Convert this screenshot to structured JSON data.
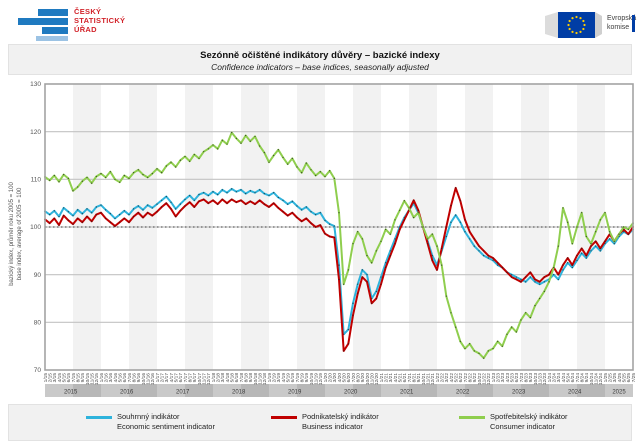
{
  "header": {
    "czso": {
      "line1": "ČESKÝ",
      "line2": "STATISTICKÝ",
      "line3": "ÚŘAD"
    },
    "ec": {
      "line1": "Evropská",
      "line2": "komise"
    }
  },
  "title_band": {
    "title_cs": "Sezónně očištěné indikátory důvěry – bazické indexy",
    "title_en": "Confidence indicators – base indices, seasonally adjusted"
  },
  "colors": {
    "esi": "#2eb3dc",
    "business": "#c00000",
    "consumer": "#8fce4e",
    "grid": "#c3c3c3",
    "plot_border": "#a3a3a3",
    "baseline_dotted": "#444444",
    "band_light": "#c9c9c9",
    "band_dark": "#b7b7b7",
    "czso_blue": "#1f7ac0",
    "czso_blue_light": "#9cc3e4",
    "czso_red": "#d2232a",
    "eu_blue": "#003da5",
    "eu_star": "#ffcc00"
  },
  "legend": {
    "entries": [
      {
        "name_cs": "Souhrnný indikátor",
        "name_en": "Economic sentiment indicator",
        "color": "#2eb3dc"
      },
      {
        "name_cs": "Podnikatelský indikátor",
        "name_en": "Business indicator",
        "color": "#c00000"
      },
      {
        "name_cs": "Spotřebitelský indikátor",
        "name_en": "Consumer indicator",
        "color": "#8fce4e"
      }
    ]
  },
  "chart_data": {
    "type": "line",
    "title": "Sezónně očištěné indikátory důvěry – bazické indexy",
    "subtitle": "Confidence indicators – base indices, seasonally adjusted",
    "ylabel_cs": "bazický index, průměr roku 2005 = 100",
    "ylabel_en": "base index, average of 2005 = 100",
    "xlabel": "",
    "ylim": [
      70,
      130
    ],
    "yticks": [
      70,
      80,
      90,
      100,
      110,
      120,
      130
    ],
    "baseline": 100,
    "grid": true,
    "legend_position": "bottom",
    "year_bands": [
      "2015",
      "2016",
      "2017",
      "2018",
      "2019",
      "2020",
      "2021",
      "2022",
      "2023",
      "2024",
      "2025"
    ],
    "x_tick_labels": [
      "1/15",
      "2/15",
      "3/15",
      "4/15",
      "5/15",
      "6/15",
      "7/15",
      "8/15",
      "9/15",
      "10/15",
      "11/15",
      "12/15",
      "1/16",
      "2/16",
      "3/16",
      "4/16",
      "5/16",
      "6/16",
      "7/16",
      "8/16",
      "9/16",
      "10/16",
      "11/16",
      "12/16",
      "1/17",
      "2/17",
      "3/17",
      "4/17",
      "5/17",
      "6/17",
      "7/17",
      "8/17",
      "9/17",
      "10/17",
      "11/17",
      "12/17",
      "1/18",
      "2/18",
      "3/18",
      "4/18",
      "5/18",
      "6/18",
      "7/18",
      "8/18",
      "9/18",
      "10/18",
      "11/18",
      "12/18",
      "1/19",
      "2/19",
      "3/19",
      "4/19",
      "5/19",
      "6/19",
      "7/19",
      "8/19",
      "9/19",
      "10/19",
      "11/19",
      "12/19",
      "1/20",
      "2/20",
      "3/20",
      "4/20",
      "5/20",
      "6/20",
      "7/20",
      "8/20",
      "9/20",
      "10/20",
      "11/20",
      "12/20",
      "1/21",
      "2/21",
      "3/21",
      "4/21",
      "5/21",
      "6/21",
      "7/21",
      "8/21",
      "9/21",
      "10/21",
      "11/21",
      "12/21",
      "1/22",
      "2/22",
      "3/22",
      "4/22",
      "5/22",
      "6/22",
      "7/22",
      "8/22",
      "9/22",
      "10/22",
      "11/22",
      "12/22",
      "1/23",
      "2/23",
      "3/23",
      "4/23",
      "5/23",
      "6/23",
      "7/23",
      "8/23",
      "9/23",
      "10/23",
      "11/23",
      "12/23",
      "1/24",
      "2/24",
      "3/24",
      "4/24",
      "5/24",
      "6/24",
      "7/24",
      "8/24",
      "9/24",
      "10/24",
      "11/24",
      "12/24",
      "1/25",
      "2/25",
      "3/25",
      "4/25",
      "5/25",
      "6/25",
      "7/25"
    ],
    "series": [
      {
        "name_cs": "Souhrnný indikátor",
        "name_en": "Economic sentiment indicator",
        "color": "#2eb3dc",
        "values": [
          103.3,
          102.6,
          103.4,
          102.2,
          104.0,
          103.2,
          102.4,
          103.6,
          102.8,
          103.8,
          103.0,
          104.2,
          104.6,
          103.6,
          102.8,
          101.8,
          102.6,
          103.4,
          102.6,
          103.8,
          104.4,
          103.6,
          104.6,
          104.0,
          104.8,
          105.6,
          106.4,
          105.2,
          103.8,
          104.8,
          105.8,
          106.6,
          105.6,
          106.8,
          107.2,
          106.6,
          107.4,
          106.8,
          107.8,
          107.2,
          108.0,
          107.4,
          107.8,
          107.0,
          107.6,
          107.2,
          107.8,
          107.0,
          106.6,
          107.2,
          106.2,
          105.6,
          104.8,
          105.4,
          104.4,
          103.6,
          104.2,
          103.2,
          102.6,
          103.0,
          101.4,
          100.6,
          100.2,
          92.0,
          77.5,
          78.5,
          84.0,
          88.0,
          91.0,
          90.0,
          85.0,
          86.5,
          89.5,
          92.5,
          95.0,
          97.5,
          100.0,
          102.0,
          103.5,
          105.0,
          103.0,
          100.0,
          97.0,
          94.0,
          92.0,
          95.0,
          98.0,
          101.0,
          102.5,
          101.0,
          99.0,
          97.5,
          96.0,
          95.0,
          94.0,
          93.5,
          93.0,
          92.0,
          91.5,
          90.5,
          90.0,
          89.5,
          89.0,
          88.5,
          89.5,
          88.5,
          88.0,
          88.5,
          89.0,
          90.0,
          89.0,
          91.0,
          92.5,
          91.5,
          93.0,
          94.5,
          93.5,
          95.0,
          96.0,
          95.0,
          96.5,
          97.5,
          96.5,
          98.0,
          99.0,
          98.5,
          99.5
        ]
      },
      {
        "name_cs": "Podnikatelský indikátor",
        "name_en": "Business indicator",
        "color": "#c00000",
        "values": [
          101.6,
          100.8,
          101.8,
          100.4,
          102.4,
          101.4,
          100.6,
          101.8,
          101.0,
          102.2,
          101.2,
          102.6,
          103.0,
          101.8,
          101.0,
          100.2,
          101.0,
          101.8,
          101.0,
          102.2,
          103.0,
          102.0,
          103.0,
          102.4,
          103.2,
          104.2,
          105.0,
          103.8,
          102.2,
          103.4,
          104.4,
          105.2,
          104.2,
          105.4,
          105.8,
          105.0,
          105.6,
          104.8,
          105.8,
          105.0,
          105.8,
          105.2,
          105.6,
          104.8,
          105.4,
          104.8,
          105.6,
          104.8,
          104.2,
          105.0,
          104.0,
          103.2,
          102.4,
          103.0,
          102.0,
          101.2,
          101.8,
          100.8,
          100.0,
          100.4,
          98.6,
          98.0,
          97.8,
          89.0,
          74.0,
          75.5,
          81.5,
          86.0,
          89.5,
          88.5,
          84.0,
          85.0,
          88.0,
          91.5,
          94.0,
          96.5,
          99.5,
          101.5,
          103.5,
          105.6,
          103.5,
          100.0,
          96.5,
          93.0,
          91.0,
          95.5,
          100.0,
          104.5,
          108.2,
          105.5,
          101.5,
          99.0,
          97.5,
          96.0,
          95.0,
          94.0,
          93.5,
          92.5,
          91.5,
          90.5,
          89.5,
          89.0,
          88.5,
          89.5,
          90.5,
          89.0,
          88.5,
          89.5,
          90.0,
          91.5,
          90.0,
          92.0,
          93.5,
          92.0,
          94.0,
          95.5,
          94.0,
          96.0,
          97.0,
          95.5,
          97.0,
          98.5,
          97.0,
          98.5,
          99.5,
          98.5,
          100.0
        ]
      },
      {
        "name_cs": "Spotřebitelský indikátor",
        "name_en": "Consumer indicator",
        "color": "#8fce4e",
        "values": [
          110.5,
          109.8,
          110.8,
          109.5,
          111.0,
          110.2,
          107.6,
          108.4,
          109.6,
          110.4,
          109.2,
          110.6,
          111.2,
          110.4,
          111.6,
          110.0,
          109.4,
          110.8,
          110.2,
          111.4,
          112.0,
          111.0,
          110.4,
          111.2,
          112.2,
          111.4,
          112.8,
          113.6,
          112.6,
          114.0,
          114.8,
          113.8,
          115.2,
          114.4,
          115.8,
          116.4,
          117.2,
          116.4,
          118.2,
          117.4,
          119.8,
          118.6,
          117.6,
          119.2,
          118.0,
          119.0,
          117.0,
          115.6,
          113.6,
          115.0,
          116.2,
          114.6,
          113.2,
          114.4,
          112.6,
          111.4,
          113.4,
          112.0,
          110.8,
          111.6,
          110.6,
          111.8,
          110.2,
          103.0,
          88.0,
          91.0,
          96.5,
          99.0,
          97.5,
          94.0,
          92.5,
          95.0,
          97.0,
          99.5,
          98.5,
          101.5,
          103.5,
          105.5,
          104.0,
          102.0,
          103.0,
          100.0,
          97.5,
          98.5,
          96.0,
          92.0,
          85.5,
          82.0,
          79.0,
          76.0,
          74.5,
          75.5,
          74.0,
          73.5,
          72.5,
          74.0,
          74.5,
          76.0,
          75.0,
          77.5,
          79.0,
          78.0,
          80.5,
          82.0,
          81.0,
          83.5,
          85.0,
          86.5,
          88.5,
          91.5,
          96.0,
          104.0,
          101.0,
          96.5,
          100.0,
          103.0,
          98.0,
          96.5,
          99.0,
          101.5,
          103.0,
          99.0,
          97.0,
          98.5,
          100.0,
          99.5,
          100.8
        ]
      }
    ]
  }
}
